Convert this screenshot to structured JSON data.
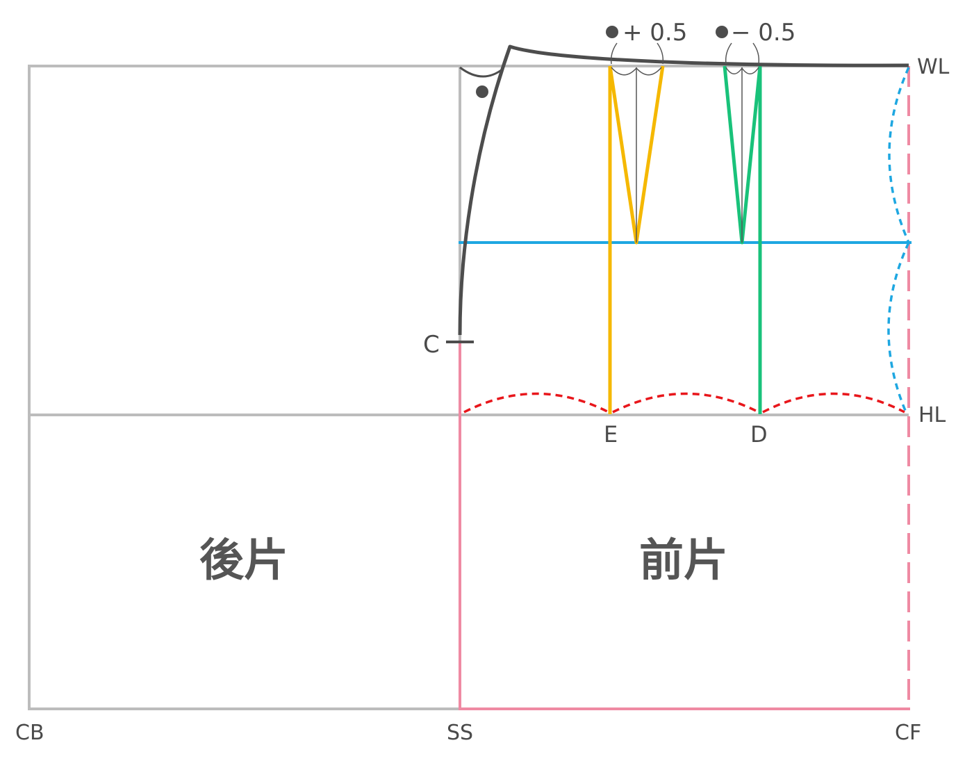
{
  "labels": {
    "wl": "WL",
    "hl": "HL",
    "cb": "CB",
    "ss": "SS",
    "cf": "CF",
    "c": "C",
    "e": "E",
    "d": "D",
    "back_piece": "後片",
    "front_piece": "前片",
    "dart1_note": "+ 0.5",
    "dart2_note": "− 0.5"
  },
  "colors": {
    "frame": "#bcbcbc",
    "outline": "#4d4d4d",
    "dart_e": "#f5b800",
    "dart_d": "#19c27a",
    "hip_guide": "#1ea7e1",
    "hem_curve": "#e8161b",
    "front_edge": "#ef8aa3",
    "dart_center": "#555555"
  }
}
